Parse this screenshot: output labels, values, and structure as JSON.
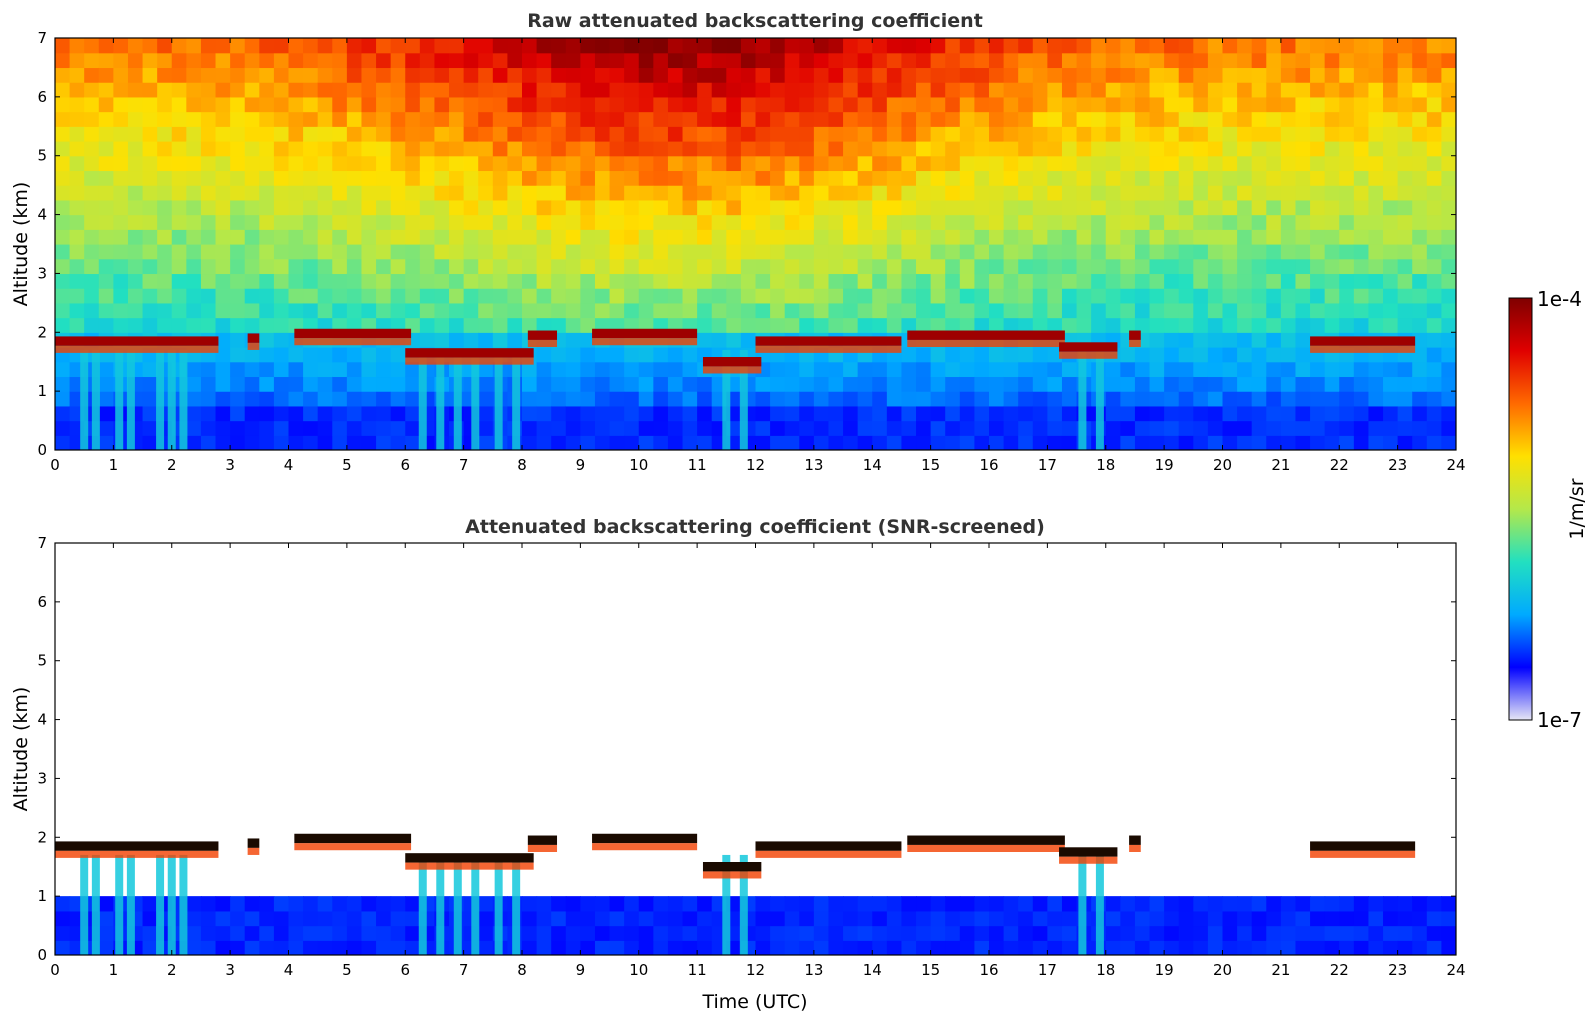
{
  "chart_data": [
    {
      "type": "heatmap",
      "title": "Raw attenuated backscattering coefficient",
      "xlabel": "",
      "ylabel": "Altitude (km)",
      "xlim": [
        0,
        24
      ],
      "ylim": [
        0,
        7
      ],
      "xticks": [
        "0",
        "1",
        "2",
        "3",
        "4",
        "5",
        "6",
        "7",
        "8",
        "9",
        "10",
        "11",
        "12",
        "13",
        "14",
        "15",
        "16",
        "17",
        "18",
        "19",
        "20",
        "21",
        "22",
        "23",
        "24"
      ],
      "yticks": [
        "0",
        "1",
        "2",
        "3",
        "4",
        "5",
        "6",
        "7"
      ],
      "screened": false,
      "cloud_layer": [
        {
          "start": 0.0,
          "end": 2.8,
          "altitude": 1.85
        },
        {
          "start": 3.3,
          "end": 3.5,
          "altitude": 1.9
        },
        {
          "start": 4.1,
          "end": 6.1,
          "altitude": 1.98
        },
        {
          "start": 6.0,
          "end": 8.2,
          "altitude": 1.65
        },
        {
          "start": 8.1,
          "end": 8.6,
          "altitude": 1.95
        },
        {
          "start": 9.2,
          "end": 11.0,
          "altitude": 1.98
        },
        {
          "start": 11.1,
          "end": 12.1,
          "altitude": 1.5
        },
        {
          "start": 12.0,
          "end": 14.5,
          "altitude": 1.85
        },
        {
          "start": 14.6,
          "end": 17.3,
          "altitude": 1.95
        },
        {
          "start": 17.2,
          "end": 18.2,
          "altitude": 1.75
        },
        {
          "start": 18.4,
          "end": 18.6,
          "altitude": 1.95
        },
        {
          "start": 21.5,
          "end": 23.3,
          "altitude": 1.85
        }
      ],
      "precipitation_shafts": [
        0.5,
        0.7,
        1.1,
        1.3,
        1.8,
        2.0,
        2.2,
        6.3,
        6.6,
        6.9,
        7.2,
        7.6,
        7.9,
        11.5,
        11.8,
        17.6,
        17.9
      ]
    },
    {
      "type": "heatmap",
      "title": "Attenuated backscattering coefficient (SNR-screened)",
      "xlabel": "Time (UTC)",
      "ylabel": "Altitude (km)",
      "xlim": [
        0,
        24
      ],
      "ylim": [
        0,
        7
      ],
      "xticks": [
        "0",
        "1",
        "2",
        "3",
        "4",
        "5",
        "6",
        "7",
        "8",
        "9",
        "10",
        "11",
        "12",
        "13",
        "14",
        "15",
        "16",
        "17",
        "18",
        "19",
        "20",
        "21",
        "22",
        "23",
        "24"
      ],
      "yticks": [
        "0",
        "1",
        "2",
        "3",
        "4",
        "5",
        "6",
        "7"
      ],
      "screened": true
    }
  ],
  "colorbar": {
    "max_label": "1e-4",
    "min_label": "1e-7",
    "units": "1/m/sr",
    "colormap": [
      "#e6e6f5",
      "#0000ff",
      "#00aaff",
      "#22e0c0",
      "#b4e84a",
      "#ffe000",
      "#ff6a00",
      "#e00000",
      "#7f0000"
    ]
  }
}
